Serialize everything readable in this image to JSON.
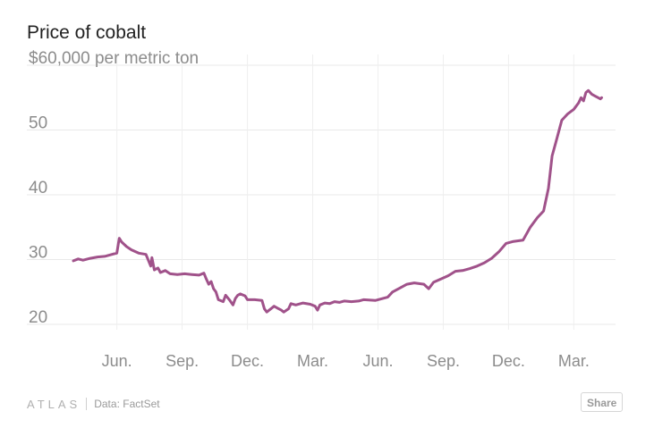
{
  "chart_data": {
    "type": "line",
    "title": "Price of cobalt",
    "ylabel": "per metric ton",
    "ylim": [
      20,
      60
    ],
    "y_ticks": [
      {
        "value": 60,
        "label": "$60,000 per metric ton"
      },
      {
        "value": 50,
        "label": "50"
      },
      {
        "value": 40,
        "label": "40"
      },
      {
        "value": 30,
        "label": "30"
      },
      {
        "value": 20,
        "label": "20"
      }
    ],
    "xlim": [
      -0.5,
      21.8
    ],
    "x_ticks": [
      {
        "value": 1.8,
        "label": "Jun."
      },
      {
        "value": 4.5,
        "label": "Sep."
      },
      {
        "value": 7.2,
        "label": "Dec."
      },
      {
        "value": 9.9,
        "label": "Mar."
      },
      {
        "value": 12.6,
        "label": "Jun."
      },
      {
        "value": 15.3,
        "label": "Sep."
      },
      {
        "value": 18.0,
        "label": "Dec."
      },
      {
        "value": 20.7,
        "label": "Mar."
      }
    ],
    "grid": true,
    "series_color": "#a0528a",
    "series": [
      {
        "values": [
          [
            0.0,
            29.8
          ],
          [
            0.2,
            30.1
          ],
          [
            0.4,
            29.9
          ],
          [
            0.7,
            30.2
          ],
          [
            1.0,
            30.4
          ],
          [
            1.3,
            30.5
          ],
          [
            1.6,
            30.8
          ],
          [
            1.8,
            31.0
          ],
          [
            1.9,
            33.3
          ],
          [
            2.0,
            32.7
          ],
          [
            2.2,
            32.0
          ],
          [
            2.4,
            31.5
          ],
          [
            2.7,
            31.0
          ],
          [
            3.0,
            30.8
          ],
          [
            3.2,
            29.0
          ],
          [
            3.25,
            30.3
          ],
          [
            3.35,
            28.4
          ],
          [
            3.5,
            28.7
          ],
          [
            3.6,
            28.0
          ],
          [
            3.8,
            28.3
          ],
          [
            4.0,
            27.8
          ],
          [
            4.3,
            27.7
          ],
          [
            4.6,
            27.8
          ],
          [
            4.9,
            27.7
          ],
          [
            5.2,
            27.6
          ],
          [
            5.4,
            27.9
          ],
          [
            5.5,
            27.0
          ],
          [
            5.6,
            26.2
          ],
          [
            5.7,
            26.6
          ],
          [
            5.8,
            25.5
          ],
          [
            5.9,
            25.0
          ],
          [
            6.0,
            23.8
          ],
          [
            6.2,
            23.5
          ],
          [
            6.3,
            24.5
          ],
          [
            6.45,
            23.8
          ],
          [
            6.6,
            23.0
          ],
          [
            6.7,
            24.0
          ],
          [
            6.8,
            24.5
          ],
          [
            6.9,
            24.7
          ],
          [
            7.1,
            24.4
          ],
          [
            7.2,
            23.8
          ],
          [
            7.5,
            23.8
          ],
          [
            7.8,
            23.7
          ],
          [
            7.9,
            22.4
          ],
          [
            8.0,
            21.9
          ],
          [
            8.2,
            22.5
          ],
          [
            8.3,
            22.8
          ],
          [
            8.45,
            22.5
          ],
          [
            8.6,
            22.2
          ],
          [
            8.7,
            21.9
          ],
          [
            8.9,
            22.4
          ],
          [
            9.0,
            23.2
          ],
          [
            9.2,
            23.0
          ],
          [
            9.5,
            23.3
          ],
          [
            9.8,
            23.1
          ],
          [
            10.0,
            22.8
          ],
          [
            10.1,
            22.2
          ],
          [
            10.2,
            23.0
          ],
          [
            10.4,
            23.3
          ],
          [
            10.6,
            23.2
          ],
          [
            10.8,
            23.5
          ],
          [
            11.0,
            23.4
          ],
          [
            11.2,
            23.6
          ],
          [
            11.5,
            23.5
          ],
          [
            11.8,
            23.6
          ],
          [
            12.0,
            23.8
          ],
          [
            12.5,
            23.7
          ],
          [
            13.0,
            24.2
          ],
          [
            13.2,
            25.0
          ],
          [
            13.5,
            25.6
          ],
          [
            13.8,
            26.2
          ],
          [
            14.1,
            26.4
          ],
          [
            14.5,
            26.2
          ],
          [
            14.7,
            25.5
          ],
          [
            14.9,
            26.5
          ],
          [
            15.2,
            27.0
          ],
          [
            15.5,
            27.5
          ],
          [
            15.8,
            28.2
          ],
          [
            16.1,
            28.3
          ],
          [
            16.4,
            28.6
          ],
          [
            16.7,
            29.0
          ],
          [
            17.0,
            29.5
          ],
          [
            17.3,
            30.2
          ],
          [
            17.6,
            31.2
          ],
          [
            17.9,
            32.5
          ],
          [
            18.2,
            32.8
          ],
          [
            18.6,
            33.0
          ],
          [
            18.9,
            35.0
          ],
          [
            19.2,
            36.5
          ],
          [
            19.45,
            37.5
          ],
          [
            19.65,
            41.0
          ],
          [
            19.8,
            46.0
          ],
          [
            19.95,
            48.0
          ],
          [
            20.2,
            51.5
          ],
          [
            20.45,
            52.5
          ],
          [
            20.7,
            53.2
          ],
          [
            20.9,
            54.2
          ],
          [
            21.0,
            55.0
          ],
          [
            21.1,
            54.5
          ],
          [
            21.2,
            55.8
          ],
          [
            21.3,
            56.1
          ],
          [
            21.45,
            55.5
          ],
          [
            21.6,
            55.2
          ],
          [
            21.8,
            54.8
          ],
          [
            21.85,
            55.0
          ]
        ]
      }
    ]
  },
  "footer": {
    "logo": "ATLAS",
    "source": "Data: FactSet",
    "share_label": "Share"
  }
}
